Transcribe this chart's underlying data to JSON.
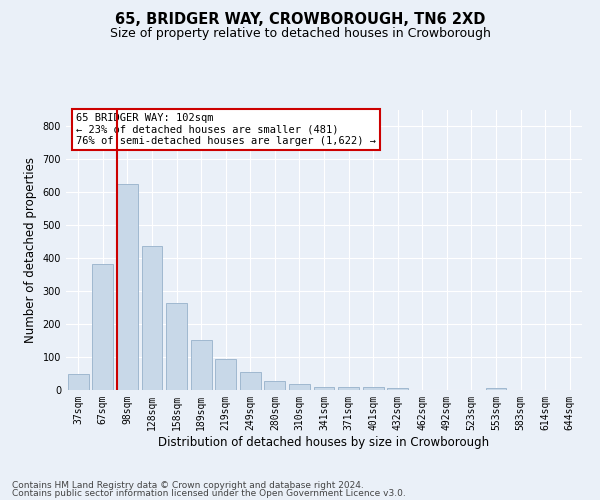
{
  "title": "65, BRIDGER WAY, CROWBOROUGH, TN6 2XD",
  "subtitle": "Size of property relative to detached houses in Crowborough",
  "xlabel": "Distribution of detached houses by size in Crowborough",
  "ylabel": "Number of detached properties",
  "categories": [
    "37sqm",
    "67sqm",
    "98sqm",
    "128sqm",
    "158sqm",
    "189sqm",
    "219sqm",
    "249sqm",
    "280sqm",
    "310sqm",
    "341sqm",
    "371sqm",
    "401sqm",
    "432sqm",
    "462sqm",
    "492sqm",
    "523sqm",
    "553sqm",
    "583sqm",
    "614sqm",
    "644sqm"
  ],
  "values": [
    48,
    383,
    625,
    437,
    265,
    153,
    95,
    55,
    28,
    17,
    10,
    10,
    10,
    5,
    0,
    0,
    0,
    7,
    0,
    0,
    0
  ],
  "bar_color": "#c8d8e8",
  "bar_edgecolor": "#a0b8d0",
  "property_line_color": "#cc0000",
  "property_bar_index": 2,
  "annotation_text": "65 BRIDGER WAY: 102sqm\n← 23% of detached houses are smaller (481)\n76% of semi-detached houses are larger (1,622) →",
  "annotation_box_color": "#ffffff",
  "annotation_box_edgecolor": "#cc0000",
  "ylim": [
    0,
    850
  ],
  "yticks": [
    0,
    100,
    200,
    300,
    400,
    500,
    600,
    700,
    800
  ],
  "footer_line1": "Contains HM Land Registry data © Crown copyright and database right 2024.",
  "footer_line2": "Contains public sector information licensed under the Open Government Licence v3.0.",
  "background_color": "#eaf0f8",
  "plot_bg_color": "#eaf0f8",
  "grid_color": "#ffffff",
  "title_fontsize": 10.5,
  "subtitle_fontsize": 9,
  "tick_fontsize": 7,
  "axis_label_fontsize": 8.5,
  "footer_fontsize": 6.5
}
